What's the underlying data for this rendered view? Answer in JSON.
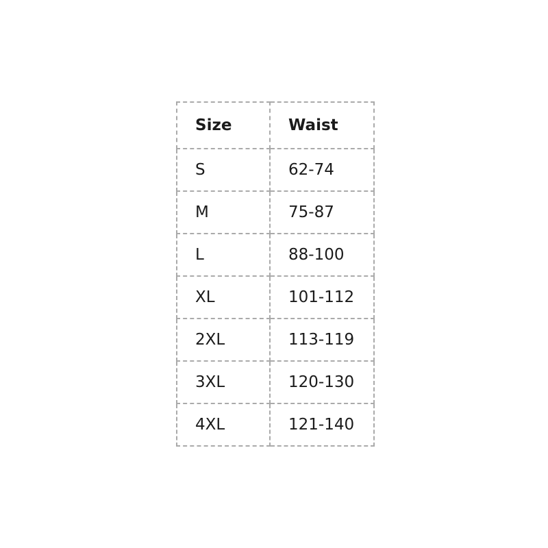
{
  "chart_data": {
    "type": "table",
    "columns": [
      "Size",
      "Waist"
    ],
    "rows": [
      [
        "S",
        "62-74"
      ],
      [
        "M",
        "75-87"
      ],
      [
        "L",
        "88-100"
      ],
      [
        "XL",
        "101-112"
      ],
      [
        "2XL",
        "113-119"
      ],
      [
        "3XL",
        "120-130"
      ],
      [
        "4XL",
        "121-140"
      ]
    ],
    "legend": null,
    "grid": "dashed-cell-borders"
  },
  "colors": {
    "background": "#ffffff",
    "border": "#aaaaaa",
    "text": "#1b1b1b"
  }
}
